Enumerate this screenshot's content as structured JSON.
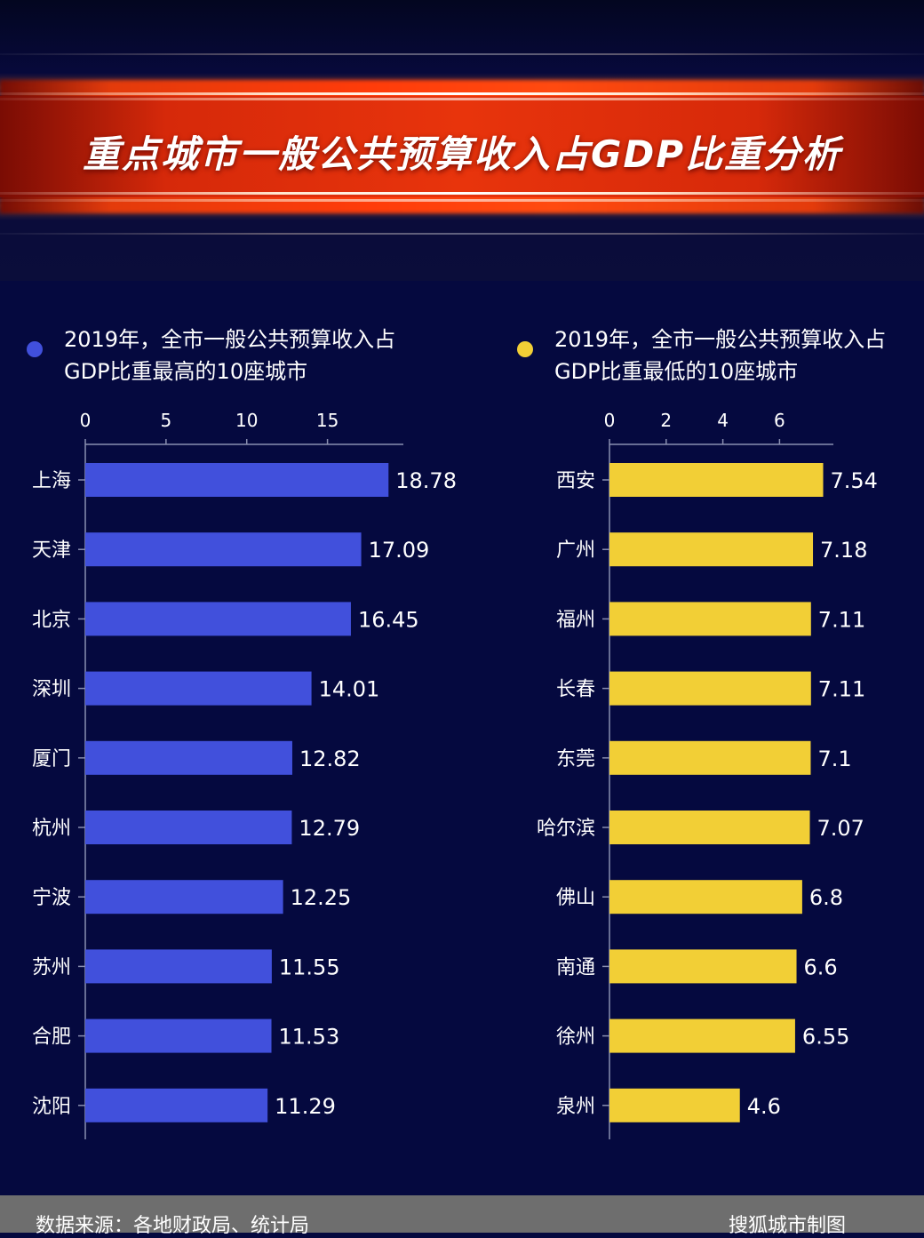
{
  "title": "重点城市一般公共预算收入占GDP比重分析",
  "legend_left": {
    "line1": "2019年，全市一般公共预算收入占",
    "line2": "GDP比重最高的10座城市",
    "color": "#4150dc"
  },
  "legend_right": {
    "line1": "2019年，全市一般公共预算收入占",
    "line2": "GDP比重最低的10座城市",
    "color": "#f2cf36"
  },
  "chart_data": [
    {
      "type": "bar",
      "orientation": "horizontal",
      "categories": [
        "上海",
        "天津",
        "北京",
        "深圳",
        "厦门",
        "杭州",
        "宁波",
        "苏州",
        "合肥",
        "沈阳"
      ],
      "values": [
        18.78,
        17.09,
        16.45,
        14.01,
        12.82,
        12.79,
        12.25,
        11.55,
        11.53,
        11.29
      ],
      "value_labels": [
        "18.78",
        "17.09",
        "16.45",
        "14.01",
        "12.82",
        "12.79",
        "12.25",
        "11.55",
        "11.53",
        "11.29"
      ],
      "xticks": [
        0,
        5,
        10,
        15
      ],
      "xlim": [
        0,
        19.7
      ],
      "color": "#4150dc",
      "axis_position": "top"
    },
    {
      "type": "bar",
      "orientation": "horizontal",
      "categories": [
        "西安",
        "广州",
        "福州",
        "长春",
        "东莞",
        "哈尔滨",
        "佛山",
        "南通",
        "徐州",
        "泉州"
      ],
      "values": [
        7.54,
        7.18,
        7.11,
        7.11,
        7.1,
        7.07,
        6.8,
        6.6,
        6.55,
        4.6
      ],
      "value_labels": [
        "7.54",
        "7.18",
        "7.11",
        "7.11",
        "7.1",
        "7.07",
        "6.8",
        "6.6",
        "6.55",
        "4.6"
      ],
      "xticks": [
        0,
        2,
        4,
        6
      ],
      "xlim": [
        0,
        7.9
      ],
      "color": "#f2cf36",
      "axis_position": "top"
    }
  ],
  "footer": {
    "source": "数据来源：各地财政局、统计局",
    "credit": "搜狐城市制图"
  }
}
